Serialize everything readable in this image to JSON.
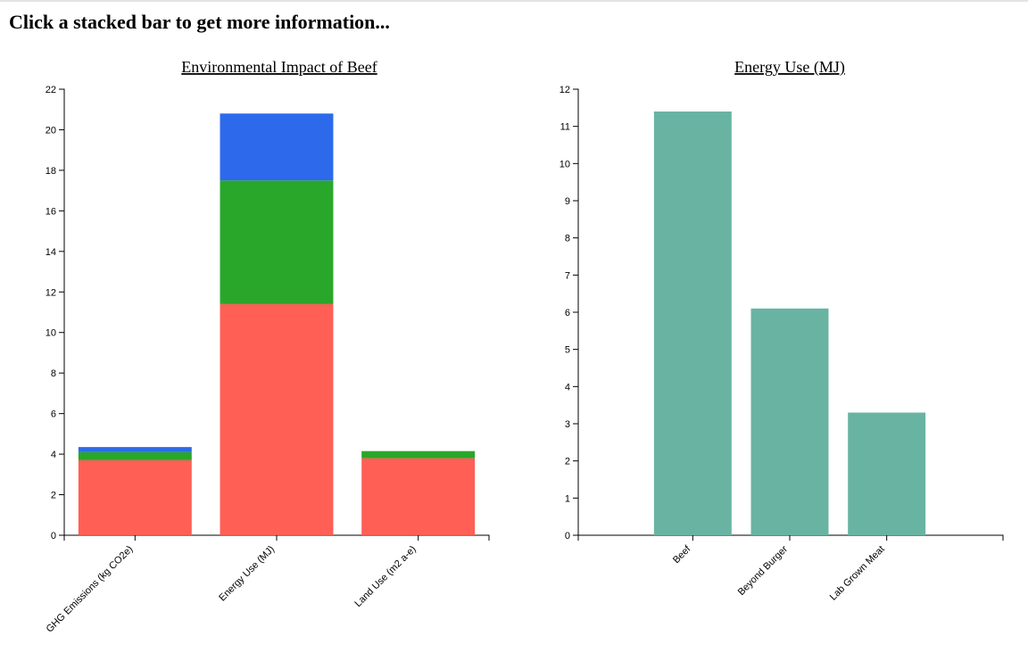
{
  "page": {
    "heading": "Click a stacked bar to get more information..."
  },
  "chart_data": [
    {
      "type": "bar",
      "stacked": true,
      "title": "Environmental Impact of Beef",
      "categories": [
        "GHG Emissions (kg CO2e)",
        "Energy Use (MJ)",
        "Land Use (m2 a-e)"
      ],
      "series": [
        {
          "color": "#ff5f55",
          "values": [
            3.7,
            11.4,
            3.8
          ]
        },
        {
          "color": "#28a72b",
          "values": [
            0.4,
            6.1,
            0.35
          ]
        },
        {
          "color": "#2d69eb",
          "values": [
            0.25,
            3.3,
            0.0
          ]
        }
      ],
      "ylim": [
        0,
        22
      ],
      "yticks": [
        0,
        2,
        4,
        6,
        8,
        10,
        12,
        14,
        16,
        18,
        20,
        22
      ],
      "xlabel": "",
      "ylabel": "",
      "grid": false,
      "legend": "none"
    },
    {
      "type": "bar",
      "title": "Energy Use (MJ)",
      "categories": [
        "Beef",
        "Beyond Burger",
        "Lab Grown Meat"
      ],
      "values": [
        11.4,
        6.1,
        3.3
      ],
      "color": "#69b3a2",
      "ylim": [
        0,
        12
      ],
      "yticks": [
        0,
        1,
        2,
        3,
        4,
        5,
        6,
        7,
        8,
        9,
        10,
        11,
        12
      ],
      "xlabel": "",
      "ylabel": "",
      "grid": false,
      "legend": "none"
    }
  ]
}
